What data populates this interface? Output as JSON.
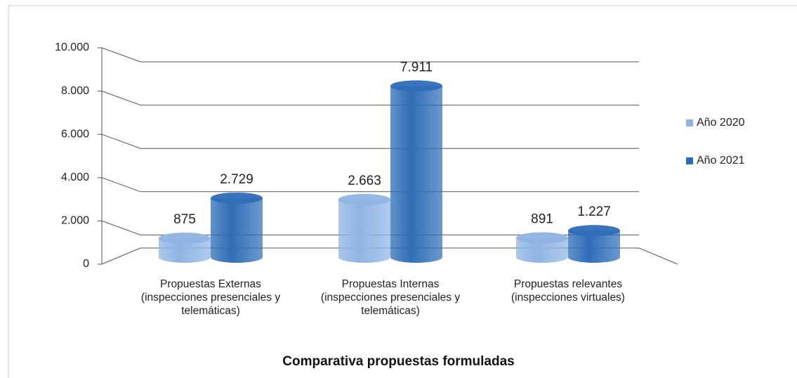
{
  "chart_data": {
    "type": "bar3d",
    "title": "Comparativa propuestas formuladas",
    "categories": [
      "Propuestas Externas (inspecciones presenciales y telemáticas)",
      "Propuestas Internas (inspecciones presenciales y telemáticas)",
      "Propuestas relevantes (inspecciones virtuales)"
    ],
    "series": [
      {
        "name": "Año 2020",
        "color": "#8fb4e3",
        "values": [
          875,
          2663,
          891
        ],
        "value_labels": [
          "875",
          "2.663",
          "891"
        ]
      },
      {
        "name": "Año 2021",
        "color": "#2f6db8",
        "values": [
          2729,
          7911,
          1227
        ],
        "value_labels": [
          "2.729",
          "7.911",
          "1.227"
        ]
      }
    ],
    "ylim": [
      0,
      10000
    ],
    "yticks": [
      0,
      {
        "value": 2000,
        "label": "2.000"
      },
      {
        "value": 4000,
        "label": "4.000"
      },
      {
        "value": 6000,
        "label": "6.000"
      },
      {
        "value": 8000,
        "label": "8.000"
      },
      {
        "value": 10000,
        "label": "10.000"
      }
    ],
    "grid": true,
    "legend": "right"
  }
}
